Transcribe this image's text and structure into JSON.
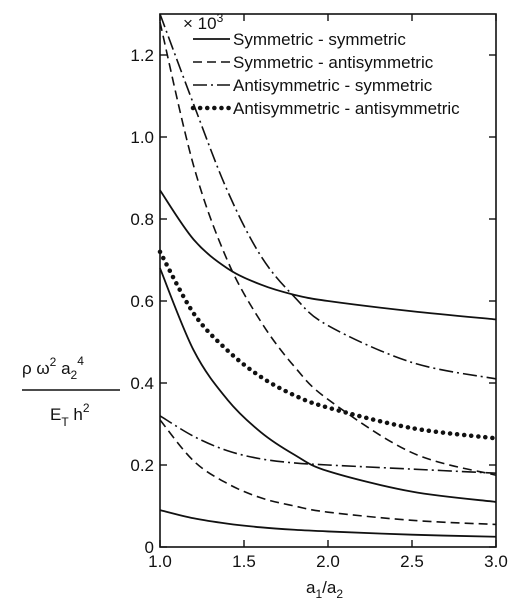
{
  "chart_data": {
    "type": "line",
    "multiplier_label": "× 10",
    "multiplier_exponent": "3",
    "xlim": [
      1.0,
      3.0
    ],
    "ylim": [
      0,
      1.3
    ],
    "x_ticks": [
      1.0,
      1.5,
      2.0,
      2.5,
      3.0
    ],
    "x_tick_labels": [
      "1.0",
      "1.5",
      "2.0",
      "2.5",
      "3.0"
    ],
    "y_ticks": [
      0,
      0.2,
      0.4,
      0.6,
      0.8,
      1.0,
      1.2
    ],
    "y_tick_labels": [
      "0",
      "0.2",
      "0.4",
      "0.6",
      "0.8",
      "1.0",
      "1.2"
    ],
    "xlabel": {
      "a": "a",
      "sub1": "1",
      "slash": "/a",
      "sub2": "2"
    },
    "ylabel": {
      "num_rho": "ρ ω",
      "num_sup2": "2",
      "num_a": " a",
      "num_sub2": "2",
      "num_sup4": "4",
      "den_E": "E",
      "den_subT": "T",
      "den_h": " h",
      "den_sup2": "2"
    },
    "legend_position": "top-right",
    "series": [
      {
        "name": "Symmetric - symmetric",
        "style": "solid",
        "color": "#111111",
        "curves": [
          {
            "x": [
              1.0,
              1.2,
              1.4,
              1.6,
              1.8,
              2.0,
              2.5,
              3.0
            ],
            "y": [
              0.87,
              0.75,
              0.68,
              0.64,
              0.615,
              0.6,
              0.575,
              0.555
            ]
          },
          {
            "x": [
              1.0,
              1.2,
              1.4,
              1.6,
              1.8,
              2.0,
              2.5,
              3.0
            ],
            "y": [
              0.68,
              0.48,
              0.36,
              0.28,
              0.225,
              0.185,
              0.135,
              0.11
            ]
          },
          {
            "x": [
              1.0,
              1.2,
              1.4,
              1.6,
              1.8,
              2.0,
              2.5,
              3.0
            ],
            "y": [
              0.09,
              0.07,
              0.057,
              0.048,
              0.042,
              0.038,
              0.03,
              0.025
            ]
          }
        ]
      },
      {
        "name": "Symmetric - antisymmetric",
        "style": "dashed",
        "color": "#111111",
        "curves": [
          {
            "x": [
              1.0,
              1.2,
              1.4,
              1.6,
              1.8,
              2.0,
              2.5,
              3.0
            ],
            "y": [
              1.28,
              0.93,
              0.7,
              0.55,
              0.44,
              0.36,
              0.23,
              0.175
            ]
          },
          {
            "x": [
              1.0,
              1.2,
              1.4,
              1.6,
              1.8,
              2.0,
              2.5,
              3.0
            ],
            "y": [
              0.31,
              0.21,
              0.155,
              0.12,
              0.1,
              0.085,
              0.065,
              0.055
            ]
          }
        ]
      },
      {
        "name": "Antisymmetric - symmetric",
        "style": "dashdot",
        "color": "#111111",
        "curves": [
          {
            "x": [
              1.0,
              1.2,
              1.4,
              1.6,
              1.8,
              2.0,
              2.5,
              3.0
            ],
            "y": [
              1.3,
              1.08,
              0.87,
              0.71,
              0.61,
              0.54,
              0.45,
              0.41
            ]
          },
          {
            "x": [
              1.0,
              1.2,
              1.4,
              1.6,
              1.8,
              2.0,
              2.5,
              3.0
            ],
            "y": [
              0.32,
              0.27,
              0.235,
              0.215,
              0.205,
              0.2,
              0.19,
              0.18
            ]
          }
        ]
      },
      {
        "name": "Antisymmetric - antisymmetric",
        "style": "dotted",
        "color": "#111111",
        "curves": [
          {
            "x": [
              1.0,
              1.2,
              1.4,
              1.6,
              1.8,
              2.0,
              2.5,
              3.0
            ],
            "y": [
              0.72,
              0.57,
              0.48,
              0.415,
              0.37,
              0.34,
              0.29,
              0.265
            ]
          }
        ]
      }
    ]
  }
}
